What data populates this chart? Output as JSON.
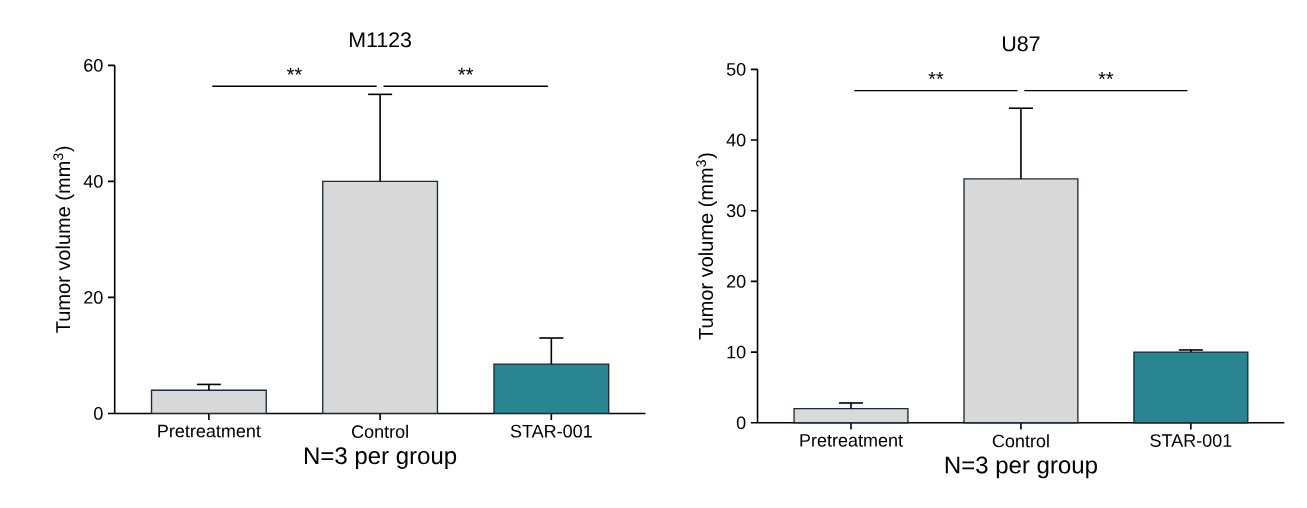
{
  "chart_data": [
    {
      "type": "bar",
      "title": "M1123",
      "xlabel": "N=3 per group",
      "ylabel": "Tumor volume (mm$^{3}$)",
      "categories": [
        "Pretreatment",
        "Control",
        "STAR-001"
      ],
      "values": [
        4,
        40,
        8.5
      ],
      "errors": [
        1,
        15,
        4.5
      ],
      "colors": [
        "#d9d9d9",
        "#d9d9d9",
        "#2a8592"
      ],
      "ylim": [
        0,
        60
      ],
      "yticks": [
        0,
        20,
        40,
        60
      ],
      "annotations": [
        "**",
        "**"
      ]
    },
    {
      "type": "bar",
      "title": "U87",
      "xlabel": "N=3 per group",
      "ylabel": "Tumor volume (mm$^{3}$)",
      "categories": [
        "Pretreatment",
        "Control",
        "STAR-001"
      ],
      "values": [
        2,
        34.5,
        10
      ],
      "errors": [
        0.8,
        10,
        0.3
      ],
      "colors": [
        "#d9d9d9",
        "#d9d9d9",
        "#2a8592"
      ],
      "ylim": [
        0,
        50
      ],
      "yticks": [
        0,
        10,
        20,
        30,
        40,
        50
      ],
      "annotations": [
        "**",
        "**"
      ]
    }
  ]
}
